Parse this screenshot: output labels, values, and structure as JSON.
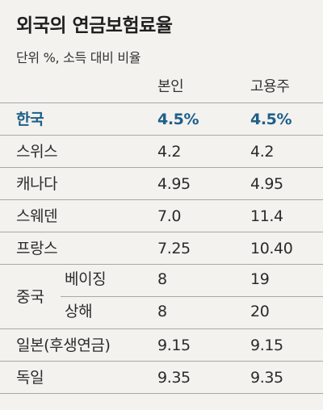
{
  "title": "외국의 연금보험료율",
  "subtitle": "단위 %, 소득 대비 비율",
  "columns": {
    "name": "",
    "self": "본인",
    "employer": "고용주"
  },
  "rows": [
    {
      "name": "한국",
      "self": "4.5%",
      "employer": "4.5%",
      "highlight": true
    },
    {
      "name": "스위스",
      "self": "4.2",
      "employer": "4.2"
    },
    {
      "name": "캐나다",
      "self": "4.95",
      "employer": "4.95"
    },
    {
      "name": "스웨덴",
      "self": "7.0",
      "employer": "11.4"
    },
    {
      "name": "프랑스",
      "self": "7.25",
      "employer": "10.40"
    }
  ],
  "china": {
    "name": "중국",
    "cities": [
      {
        "name": "베이징",
        "self": "8",
        "employer": "19"
      },
      {
        "name": "상해",
        "self": "8",
        "employer": "20"
      }
    ]
  },
  "rows_after": [
    {
      "name": "일본(후생연금)",
      "self": "9.15",
      "employer": "9.15"
    },
    {
      "name": "독일",
      "self": "9.35",
      "employer": "9.35"
    }
  ],
  "colors": {
    "highlight": "#1e5f8a",
    "background": "#f3f2ee",
    "rule": "#a8a8a8"
  }
}
